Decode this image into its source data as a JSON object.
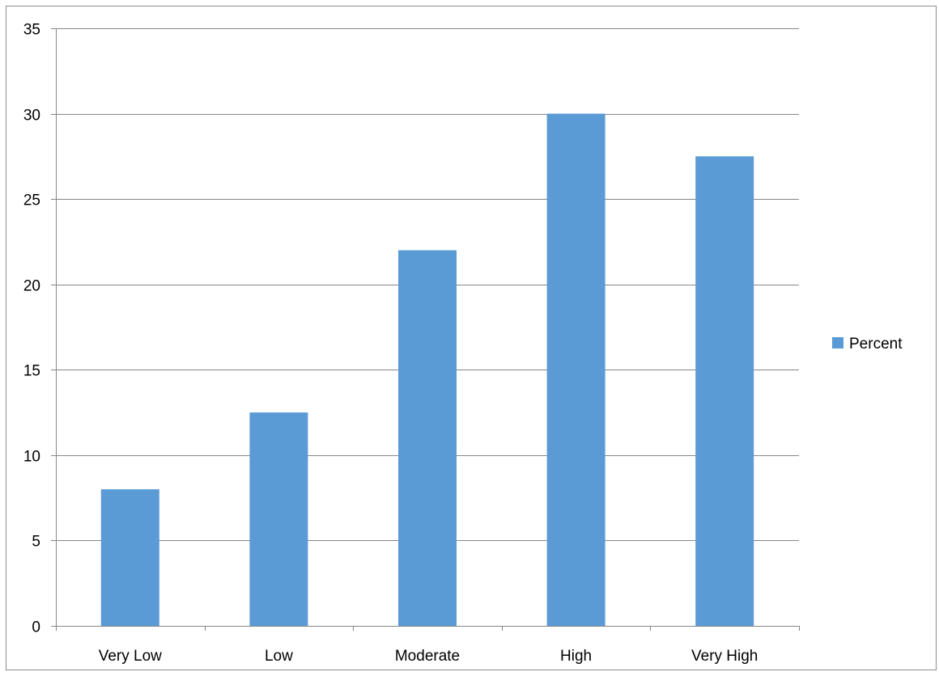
{
  "chart_data": {
    "type": "bar",
    "categories": [
      "Very Low",
      "Low",
      "Moderate",
      "High",
      "Very High"
    ],
    "series": [
      {
        "name": "Percent",
        "values": [
          8,
          12.5,
          22,
          30,
          27.5
        ],
        "color": "#5b9bd5"
      }
    ],
    "title": "",
    "xlabel": "",
    "ylabel": "",
    "ylim": [
      0,
      35
    ],
    "yticks": [
      "0",
      "5",
      "10",
      "15",
      "20",
      "25",
      "30",
      "35"
    ],
    "grid": true,
    "legend_position": "right"
  }
}
